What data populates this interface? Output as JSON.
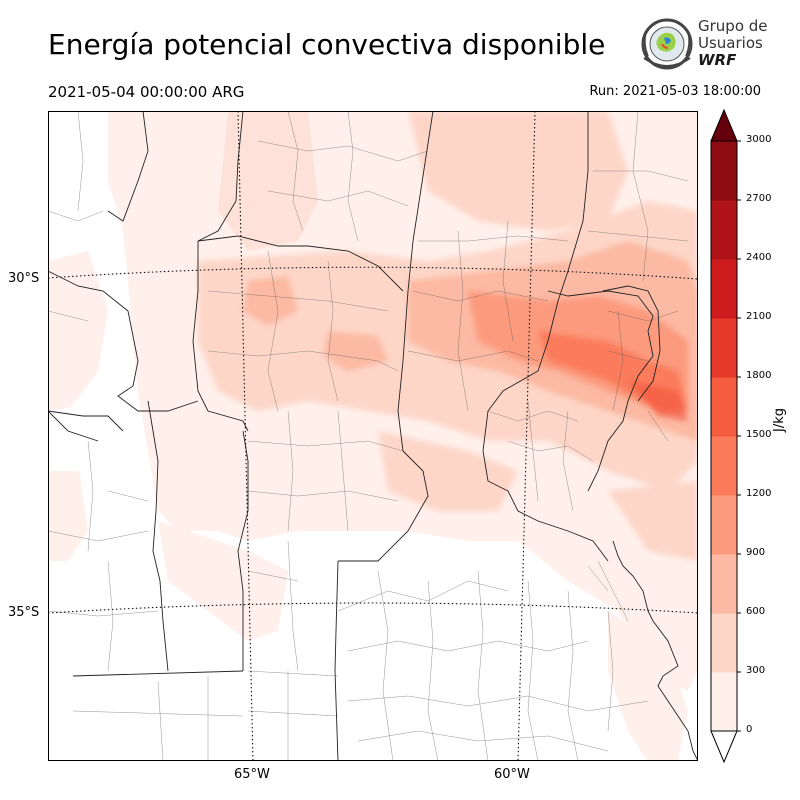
{
  "header": {
    "title": "Energía potencial convectiva disponible",
    "valid_time": "2021-05-04 00:00:00 ARG",
    "run_time": "Run: 2021-05-03 18:00:00"
  },
  "logo": {
    "line1": "Grupo de",
    "line2": "Usuarios",
    "line3": "WRF"
  },
  "map": {
    "lat_labels": [
      "30°S",
      "35°S"
    ],
    "lon_labels": [
      "65°W",
      "60°W"
    ]
  },
  "colorbar": {
    "unit": "J/kg",
    "ticks": [
      "0",
      "300",
      "600",
      "900",
      "1200",
      "1500",
      "1800",
      "2100",
      "2400",
      "2700",
      "3000"
    ],
    "colors": [
      "#fff0eb",
      "#fdd6c8",
      "#fcb9a3",
      "#fc9a7d",
      "#fb7b5b",
      "#f45b3f",
      "#e5392b",
      "#ce1c1e",
      "#b01319",
      "#8c0c12",
      "#67000d"
    ],
    "under_color": "#ffffff",
    "over_color": "#67000d"
  }
}
